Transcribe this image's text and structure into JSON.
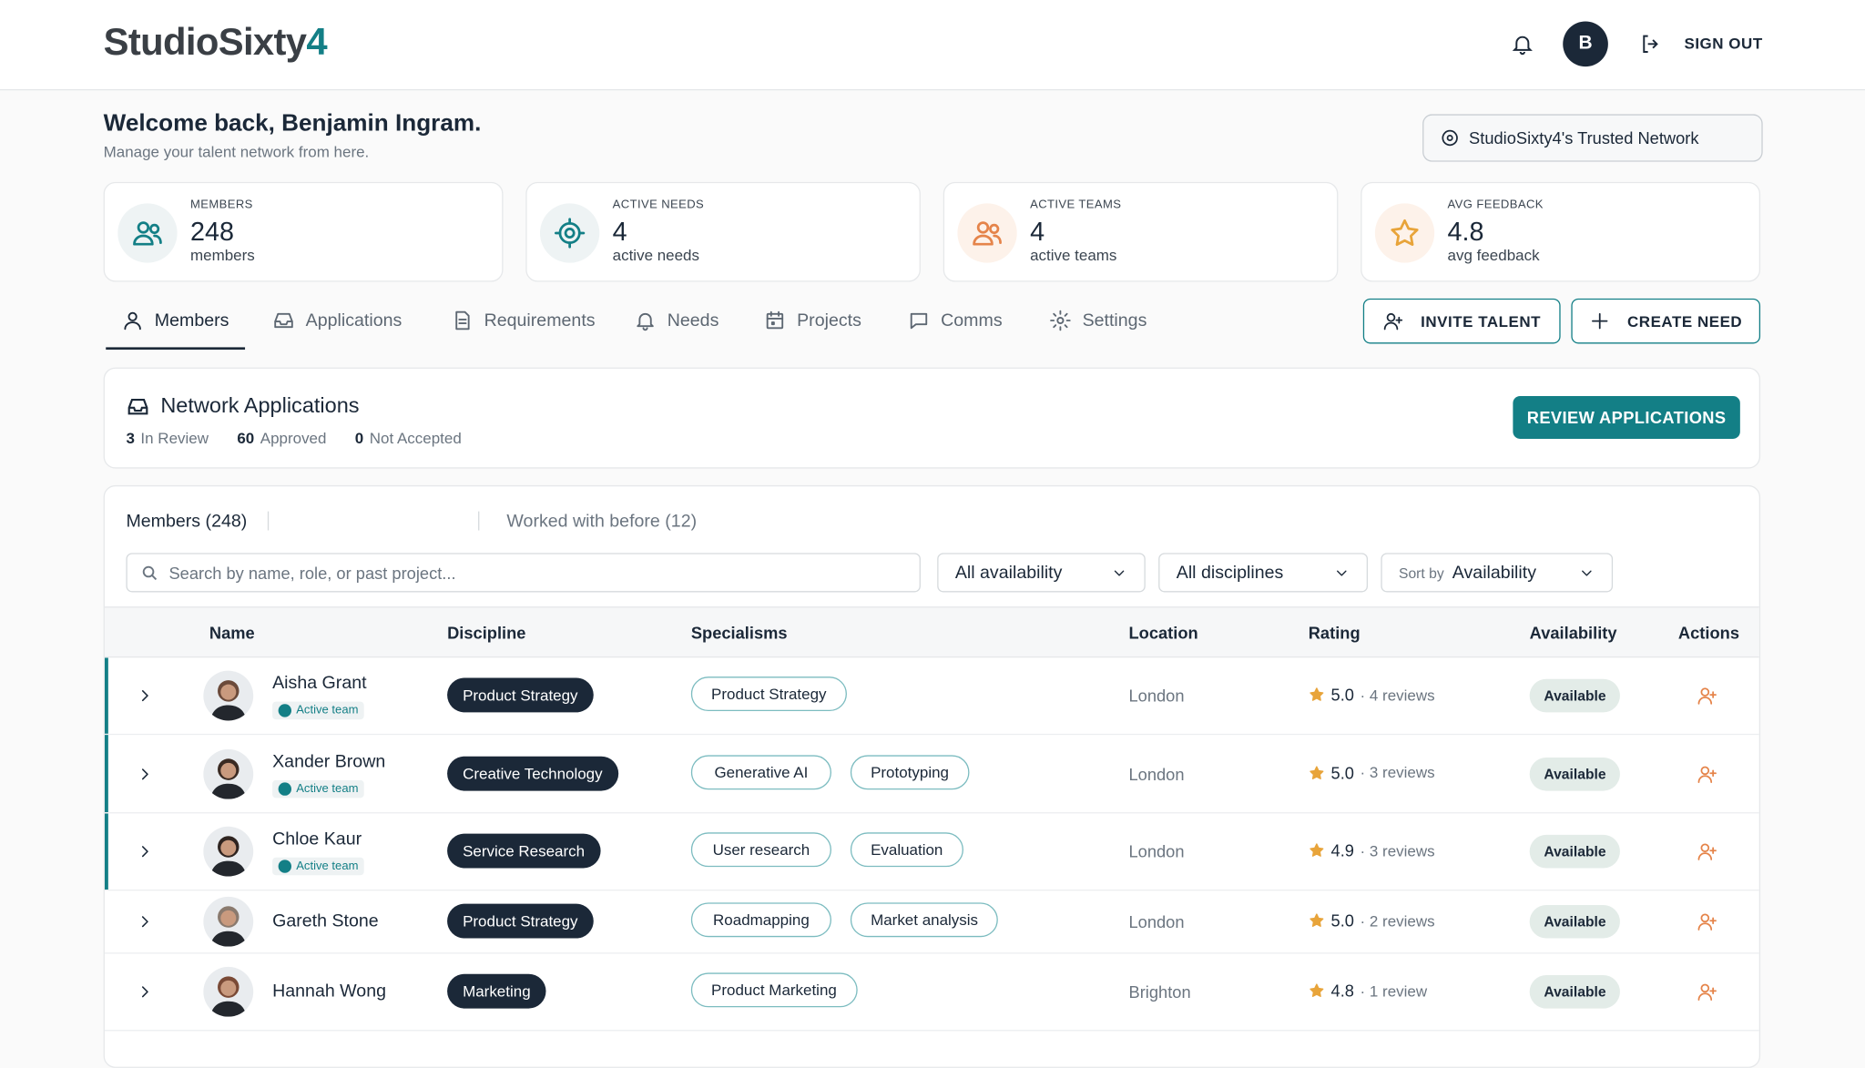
{
  "header": {
    "brand": "StudioSixty",
    "brand_accent": "4",
    "avatar_initial": "B",
    "sign_out": "SIGN OUT"
  },
  "welcome": {
    "title": "Welcome back, Benjamin Ingram.",
    "subtitle": "Manage your talent network from here.",
    "network_button": "StudioSixty4's Trusted Network"
  },
  "stats": [
    {
      "label": "MEMBERS",
      "value": "248",
      "unit": "members",
      "icon": "people",
      "color": "#137f86"
    },
    {
      "label": "ACTIVE NEEDS",
      "value": "4",
      "unit": "active needs",
      "icon": "target",
      "color": "#137f86"
    },
    {
      "label": "ACTIVE TEAMS",
      "value": "4",
      "unit": "active teams",
      "icon": "people",
      "color": "#e5844a"
    },
    {
      "label": "AVG FEEDBACK",
      "value": "4.8",
      "unit": "avg feedback",
      "icon": "star",
      "color": "#e8a43a"
    }
  ],
  "tabs": [
    "Members",
    "Applications",
    "Requirements",
    "Needs",
    "Projects",
    "Comms",
    "Settings"
  ],
  "active_tab": 0,
  "actions": [
    "INVITE TALENT",
    "CREATE NEED"
  ],
  "applications": {
    "title": "Network Applications",
    "stats": [
      {
        "count": "3",
        "label": "In Review"
      },
      {
        "count": "60",
        "label": "Approved"
      },
      {
        "count": "0",
        "label": "Not Accepted"
      }
    ],
    "button": "REVIEW APPLICATIONS"
  },
  "members": {
    "tabs": [
      "Members (248)",
      "Worked with before (12)"
    ],
    "search_placeholder": "Search by name, role, or past project...",
    "filters": [
      "All availability",
      "All disciplines"
    ],
    "sort_label": "Sort by",
    "sort_value": "Availability"
  },
  "table": {
    "columns": [
      "Name",
      "Discipline",
      "Specialisms",
      "Location",
      "Rating",
      "Availability",
      "Actions"
    ],
    "rows": [
      {
        "name": "Aisha Grant",
        "badge": "Active team",
        "discipline": "Product Strategy",
        "specialisms": [
          "Product Strategy"
        ],
        "location": "London",
        "rating": "5.0",
        "reviews": "· 4 reviews",
        "availability": "Available"
      },
      {
        "name": "Xander Brown",
        "badge": "Active team",
        "discipline": "Creative Technology",
        "specialisms": [
          "Generative AI",
          "Prototyping"
        ],
        "location": "London",
        "rating": "5.0",
        "reviews": "· 3 reviews",
        "availability": "Available"
      },
      {
        "name": "Chloe Kaur",
        "badge": "Active team",
        "discipline": "Service Research",
        "specialisms": [
          "User research",
          "Evaluation"
        ],
        "location": "London",
        "rating": "4.9",
        "reviews": "· 3 reviews",
        "availability": "Available"
      },
      {
        "name": "Gareth Stone",
        "discipline": "Product Strategy",
        "specialisms": [
          "Roadmapping",
          "Market analysis"
        ],
        "location": "London",
        "rating": "5.0",
        "reviews": "· 2 reviews",
        "availability": "Available"
      },
      {
        "name": "Hannah Wong",
        "discipline": "Marketing",
        "specialisms": [
          "Product Marketing"
        ],
        "location": "Brighton",
        "rating": "4.8",
        "reviews": "· 1 review",
        "availability": "Available"
      }
    ]
  }
}
